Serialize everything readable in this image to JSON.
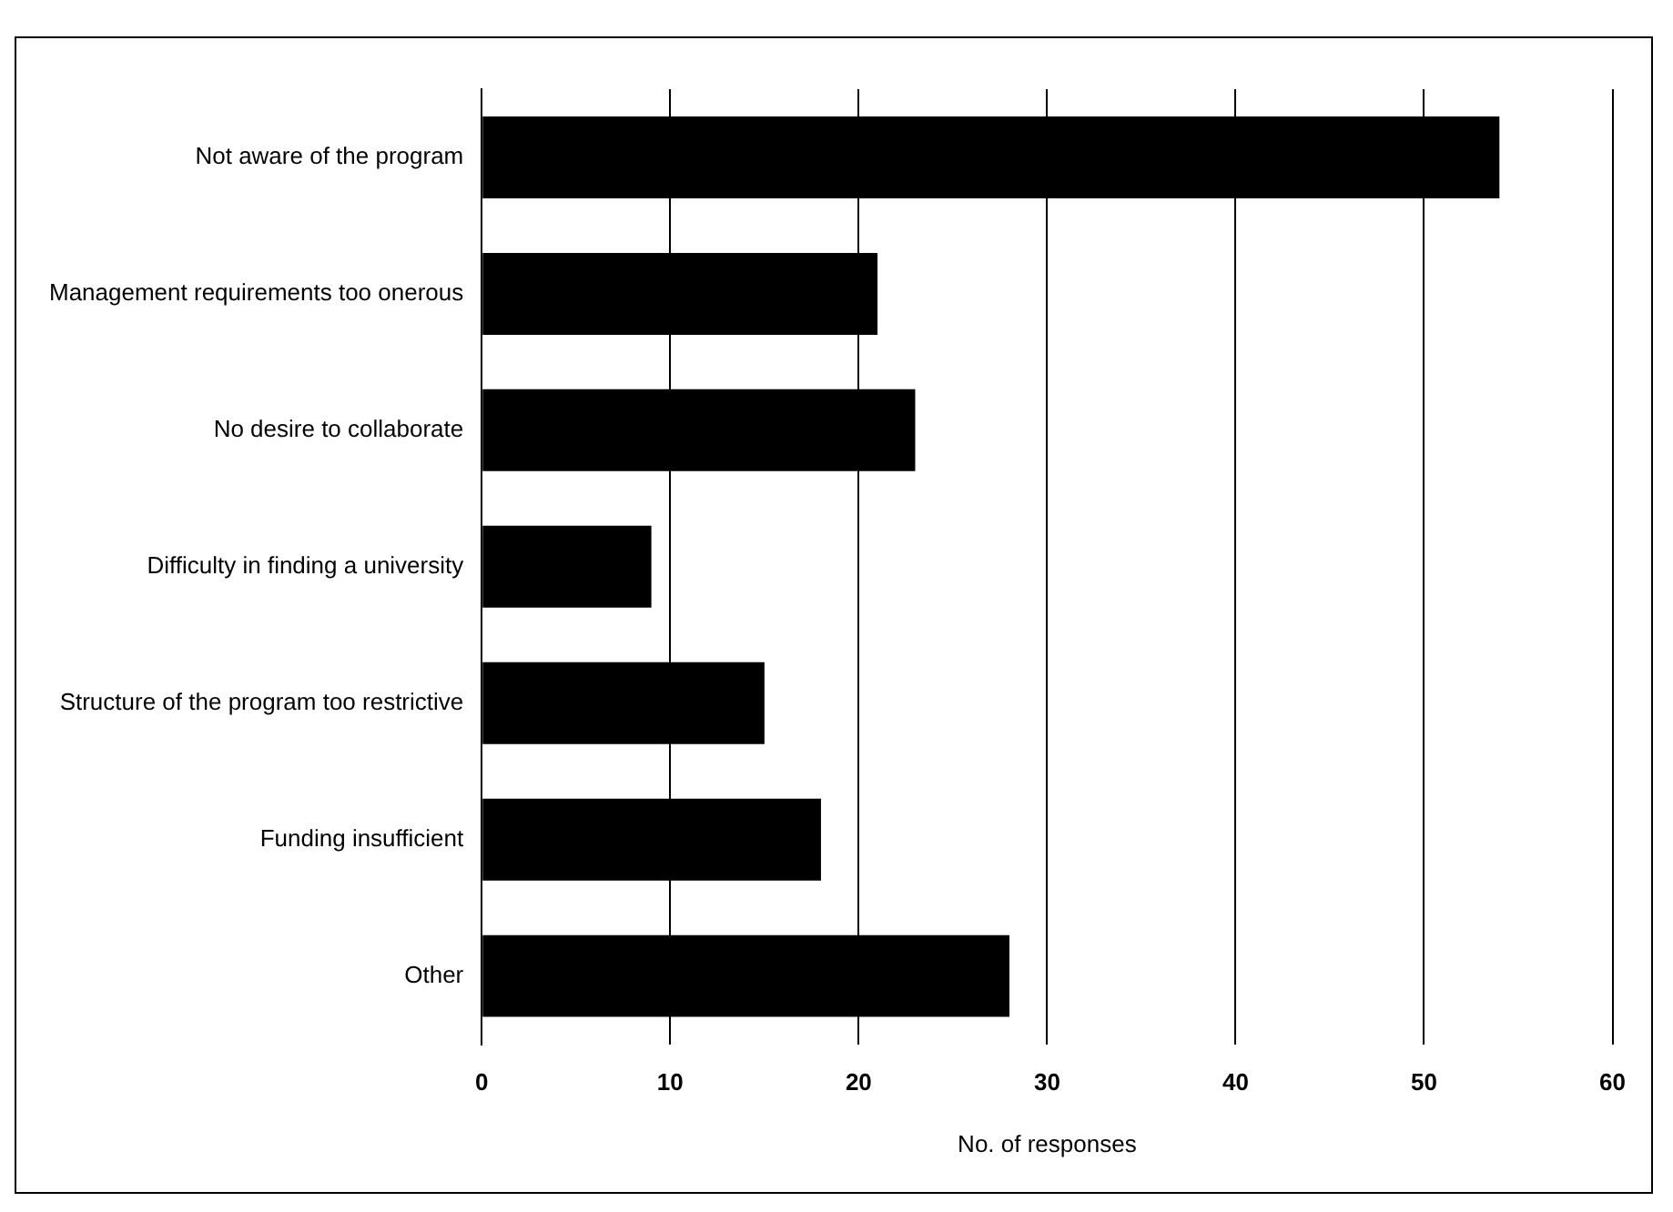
{
  "chart_data": {
    "type": "bar",
    "orientation": "horizontal",
    "xlabel": "No. of responses",
    "categories": [
      "Not aware of the program",
      "Management requirements too onerous",
      "No desire to collaborate",
      "Difficulty in finding a university",
      "Structure of the program too restrictive",
      "Funding insufficient",
      "Other"
    ],
    "values": [
      54,
      21,
      23,
      9,
      15,
      18,
      28
    ],
    "color": "#000000",
    "xlim": [
      0,
      60
    ],
    "xticks": [
      0,
      10,
      20,
      30,
      40,
      50,
      60
    ],
    "grid": "x",
    "legend": false
  }
}
